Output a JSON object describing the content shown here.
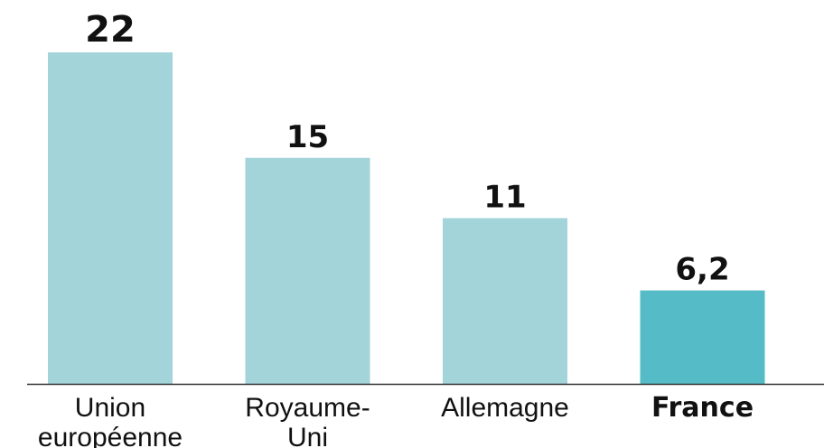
{
  "chart_data": {
    "type": "bar",
    "title": "",
    "xlabel": "",
    "ylabel": "",
    "categories": [
      [
        "Union",
        "européenne"
      ],
      [
        "Royaume-",
        "Uni"
      ],
      [
        "Allemagne"
      ],
      [
        "France"
      ]
    ],
    "values": [
      22,
      15,
      11,
      6.2
    ],
    "value_labels": [
      "22",
      "15",
      "11",
      "6,2"
    ],
    "highlight_index": 3,
    "ylim": [
      0,
      22
    ],
    "grid": false,
    "legend": "none",
    "colors": {
      "bar": "#a3d4da",
      "highlight": "#55bcc7",
      "axis": "#333333",
      "text": "#111111"
    }
  }
}
